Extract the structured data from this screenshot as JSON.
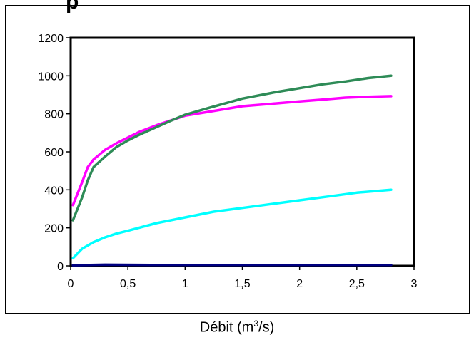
{
  "chart_data": {
    "type": "line",
    "title": "p",
    "xlabel_prefix": "Débit (m",
    "xlabel_sup": "3",
    "xlabel_suffix": "/s)",
    "ylabel": "",
    "xlim": [
      0,
      3
    ],
    "ylim": [
      0,
      1200
    ],
    "x_ticks": [
      "0",
      "0,5",
      "1",
      "1,5",
      "2",
      "2,5",
      "3"
    ],
    "y_ticks": [
      "0",
      "200",
      "400",
      "600",
      "800",
      "1000",
      "1200"
    ],
    "grid": false,
    "legend": "none",
    "series": [
      {
        "color": "#ff00ff",
        "x": [
          0.02,
          0.1,
          0.15,
          0.2,
          0.3,
          0.4,
          0.5,
          0.6,
          0.75,
          0.9,
          1.0,
          1.2,
          1.5,
          1.8,
          2.0,
          2.2,
          2.4,
          2.6,
          2.8
        ],
        "y": [
          320,
          440,
          520,
          560,
          610,
          645,
          675,
          705,
          740,
          770,
          790,
          810,
          840,
          855,
          865,
          875,
          885,
          890,
          893
        ]
      },
      {
        "color": "#2e8b57",
        "x": [
          0.02,
          0.1,
          0.15,
          0.2,
          0.3,
          0.4,
          0.5,
          0.6,
          0.75,
          0.9,
          1.0,
          1.2,
          1.5,
          1.8,
          2.0,
          2.2,
          2.4,
          2.6,
          2.8
        ],
        "y": [
          240,
          360,
          450,
          520,
          575,
          625,
          660,
          690,
          730,
          770,
          795,
          830,
          880,
          915,
          935,
          955,
          970,
          988,
          1000
        ]
      },
      {
        "color": "#00ffff",
        "x": [
          0.02,
          0.1,
          0.2,
          0.3,
          0.4,
          0.5,
          0.75,
          1.0,
          1.25,
          1.5,
          1.75,
          2.0,
          2.25,
          2.5,
          2.8
        ],
        "y": [
          40,
          90,
          125,
          150,
          170,
          185,
          225,
          255,
          285,
          305,
          325,
          345,
          365,
          385,
          400
        ]
      },
      {
        "color": "#000080",
        "x": [
          0.02,
          0.3,
          0.7,
          1.0,
          1.5,
          2.0,
          2.5,
          2.8
        ],
        "y": [
          3,
          6,
          5,
          5,
          5,
          5,
          5,
          5
        ]
      }
    ]
  }
}
